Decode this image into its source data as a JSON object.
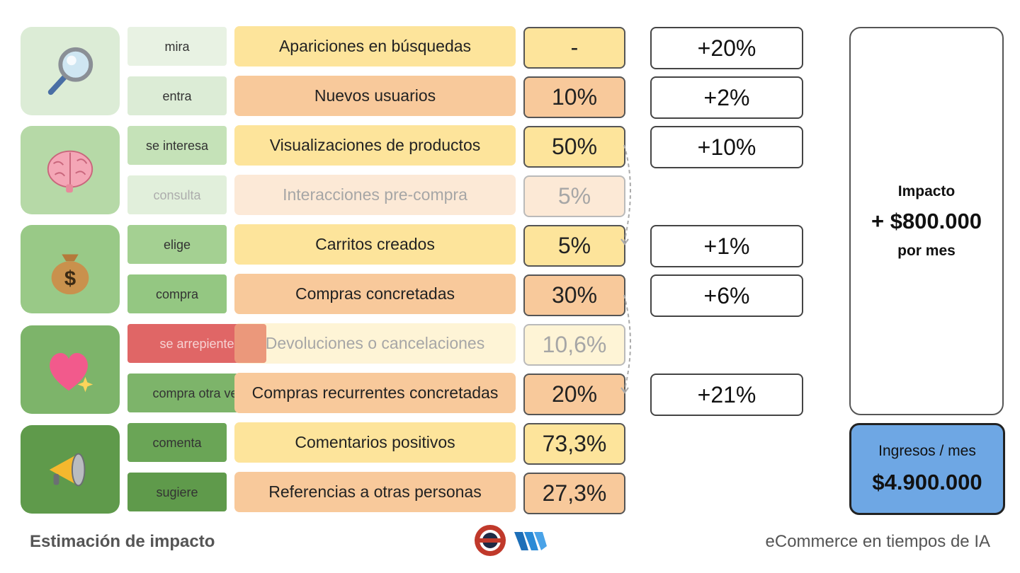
{
  "stages": [
    {
      "icon": "magnifying-glass",
      "color": "#dcecd6"
    },
    {
      "icon": "brain",
      "color": "#b6d9a7"
    },
    {
      "icon": "money-bag",
      "color": "#99c987"
    },
    {
      "icon": "sparkling-heart",
      "color": "#7db46a"
    },
    {
      "icon": "megaphone",
      "color": "#5f9a4b"
    }
  ],
  "rows": [
    {
      "verb": "mira",
      "metric": "Apariciones en búsquedas",
      "value": "-",
      "boost": "+20%"
    },
    {
      "verb": "entra",
      "metric": "Nuevos usuarios",
      "value": "10%",
      "boost": "+2%"
    },
    {
      "verb": "se interesa",
      "metric": "Visualizaciones de productos",
      "value": "50%",
      "boost": "+10%"
    },
    {
      "verb": "consulta",
      "metric": "Interacciones pre-compra",
      "value": "5%",
      "boost": ""
    },
    {
      "verb": "elige",
      "metric": "Carritos creados",
      "value": "5%",
      "boost": "+1%"
    },
    {
      "verb": "compra",
      "metric": "Compras concretadas",
      "value": "30%",
      "boost": "+6%"
    },
    {
      "verb": "se arrepiente",
      "metric": "Devoluciones o cancelaciones",
      "value": "10,6%",
      "boost": ""
    },
    {
      "verb": "compra otra vez",
      "metric": "Compras recurrentes concretadas",
      "value": "20%",
      "boost": "+21%"
    },
    {
      "verb": "comenta",
      "metric": "Comentarios positivos",
      "value": "73,3%",
      "boost": ""
    },
    {
      "verb": "sugiere",
      "metric": "Referencias a otras personas",
      "value": "27,3%",
      "boost": ""
    }
  ],
  "impact": {
    "label": "Impacto",
    "amount": "+ $800.000",
    "period": "por mes"
  },
  "income": {
    "label": "Ingresos / mes",
    "amount": "$4.900.000"
  },
  "footer": {
    "left": "Estimación de impacto",
    "right": "eCommerce en tiempos de IA"
  },
  "colors": {
    "yellow": "#fde49b",
    "orange": "#f8c99b",
    "alert": "#e06666",
    "income": "#6ea7e4"
  }
}
